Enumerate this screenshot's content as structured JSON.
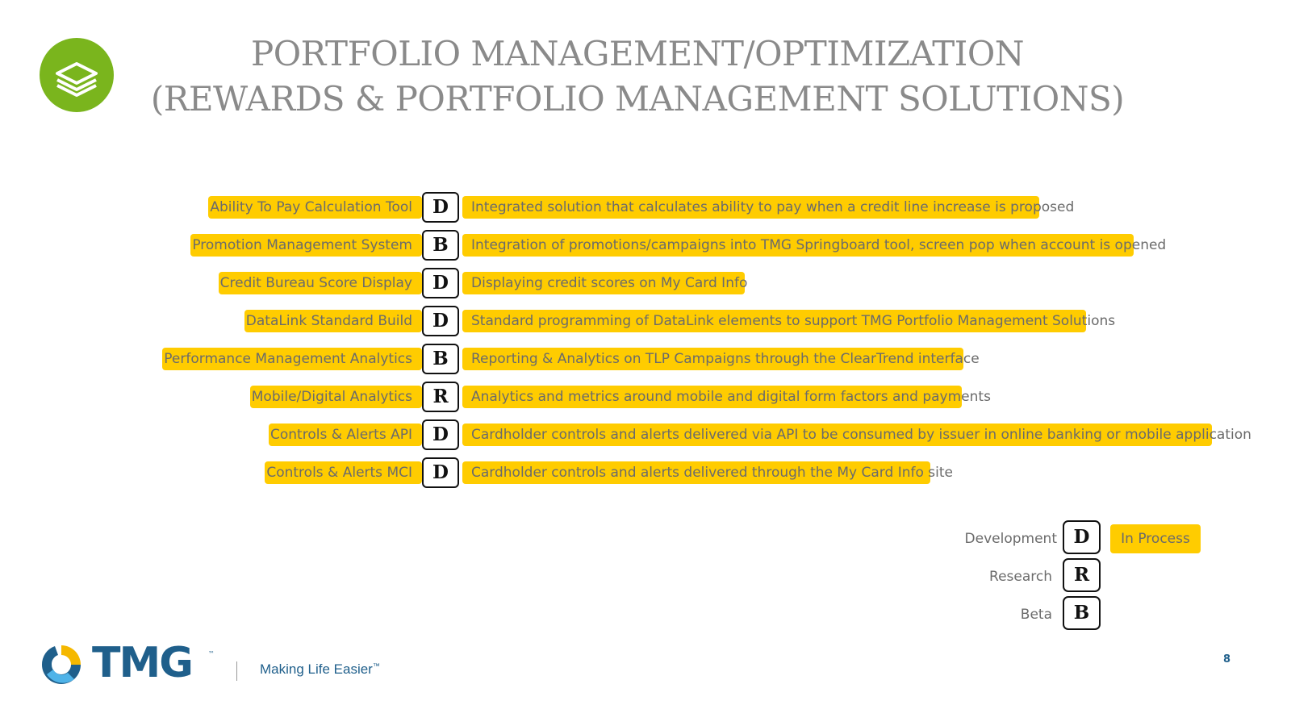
{
  "header": {
    "title_line1": "PORTFOLIO MANAGEMENT/OPTIMIZATION",
    "title_line2": "(REWARDS & PORTFOLIO MANAGEMENT SOLUTIONS)",
    "badge_icon": "stacked-layers-icon",
    "badge_color": "#7ab51d"
  },
  "rows": [
    {
      "label": "Ability To Pay Calculation Tool",
      "code": "D",
      "description": "Integrated solution that calculates ability to pay when a credit line increase is proposed",
      "highlight_fraction": 0.95
    },
    {
      "label": "Promotion Management System",
      "code": "B",
      "description": "Integration of promotions/campaigns into TMG Springboard tool, screen pop when account is opened",
      "highlight_fraction": 0.95
    },
    {
      "label": "Credit Bureau Score Display",
      "code": "D",
      "description": "Displaying credit scores on My Card Info",
      "highlight_fraction": 1.0
    },
    {
      "label": "DataLink Standard Build",
      "code": "D",
      "description": "Standard programming of DataLink elements to support TMG Portfolio Management Solutions",
      "highlight_fraction": 0.95
    },
    {
      "label": "Performance Management Analytics",
      "code": "B",
      "description": "Reporting & Analytics on TLP Campaigns through the ClearTrend interface",
      "highlight_fraction": 0.96
    },
    {
      "label": "Mobile/Digital Analytics",
      "code": "R",
      "description": "Analytics and metrics around mobile and digital form factors and payments",
      "highlight_fraction": 0.95
    },
    {
      "label": "Controls & Alerts API",
      "code": "D",
      "description": "Cardholder controls and alerts delivered via API to be consumed by issuer in online banking or mobile application",
      "highlight_fraction": 0.96
    },
    {
      "label": "Controls & Alerts MCI",
      "code": "D",
      "description": "Cardholder controls and alerts delivered through the My Card Info site",
      "highlight_fraction": 0.96
    }
  ],
  "legend": {
    "items": [
      {
        "label": "Development",
        "code": "D"
      },
      {
        "label": "Research",
        "code": "R"
      },
      {
        "label": "Beta",
        "code": "B"
      }
    ],
    "in_process_label": "In Process",
    "highlight_color": "#ffcc00"
  },
  "footer": {
    "logo_text": "TMG",
    "logo_tm": "™",
    "tagline": "Making Life Easier",
    "tagline_tm": "™",
    "page_number": "8",
    "brand_color": "#1f5f8b"
  }
}
